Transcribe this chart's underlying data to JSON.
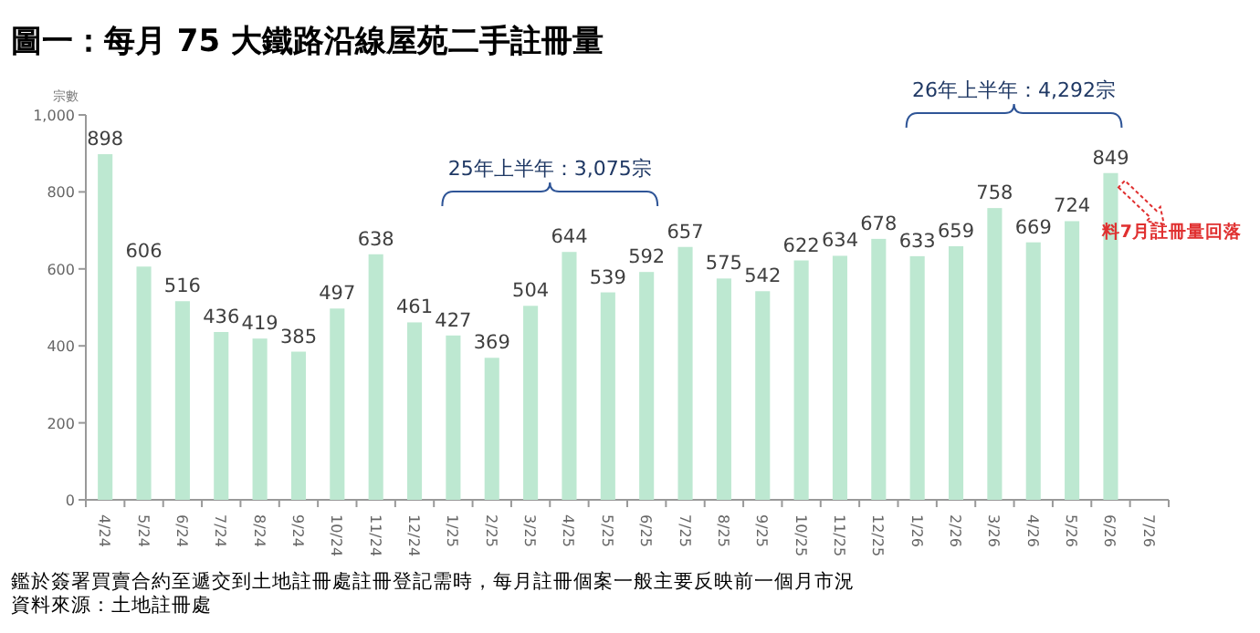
{
  "chart_data": {
    "type": "bar",
    "title": "圖一：每月 75 大鐵路沿線屋苑二手註冊量",
    "ylabel": "宗數",
    "categories": [
      "4/24",
      "5/24",
      "6/24",
      "7/24",
      "8/24",
      "9/24",
      "10/24",
      "11/24",
      "12/24",
      "1/25",
      "2/25",
      "3/25",
      "4/25",
      "5/25",
      "6/25",
      "7/25",
      "8/25",
      "9/25",
      "10/25",
      "11/25",
      "12/25",
      "1/26",
      "2/26",
      "3/26",
      "4/26",
      "5/26",
      "6/26",
      "7/26"
    ],
    "values": [
      898,
      606,
      516,
      436,
      419,
      385,
      497,
      638,
      461,
      427,
      369,
      504,
      644,
      539,
      592,
      657,
      575,
      542,
      622,
      634,
      678,
      633,
      659,
      758,
      669,
      724,
      849,
      null
    ],
    "color": "#bde8d1",
    "ylim": [
      0,
      1000
    ],
    "yticks": [
      0,
      200,
      400,
      600,
      800,
      {
        "value": 1000,
        "label": "1,000"
      }
    ],
    "data_labels": true,
    "grid": false,
    "annotations": [
      "25年上半年：3,075宗",
      "26年上半年：4,292宗",
      "料7月註冊量回落",
      "鑑於簽署買賣合約至遞交到土地註冊處註冊登記需時，每月註冊個案一般主要反映前一個月市況",
      "資料來源：土地註冊處"
    ]
  }
}
